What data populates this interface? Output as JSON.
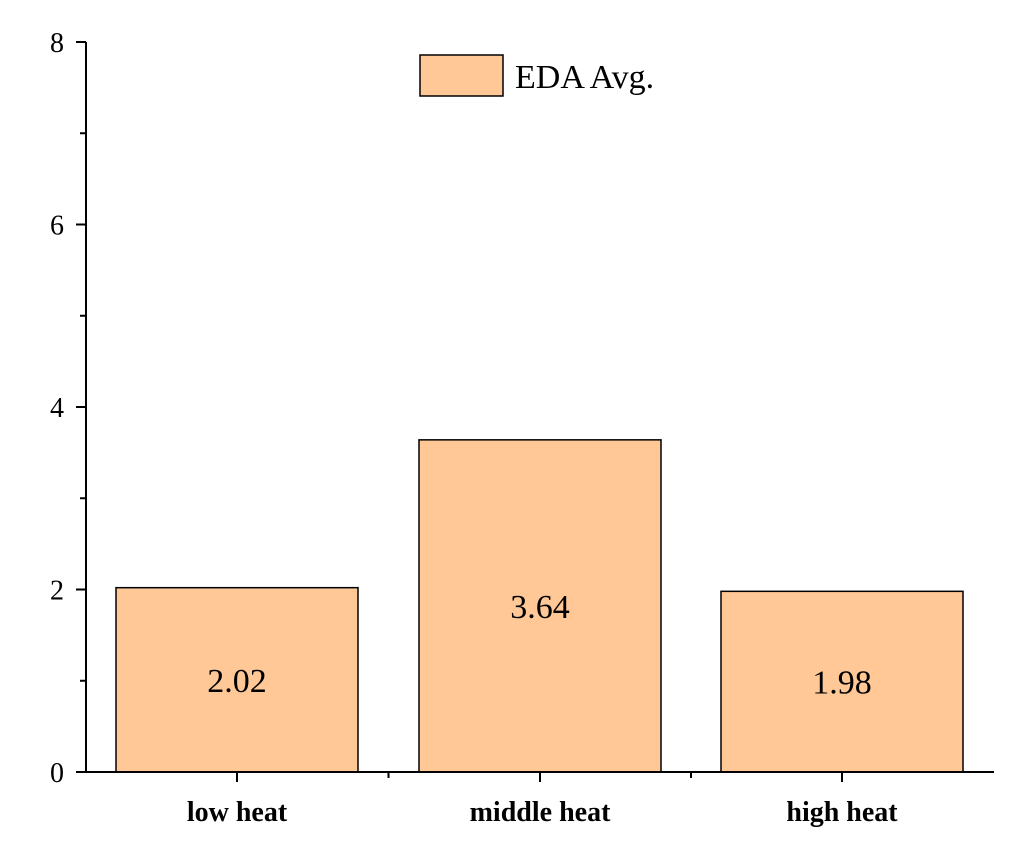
{
  "chart_data": {
    "type": "bar",
    "title": "",
    "xlabel": "",
    "ylabel": "",
    "categories": [
      "low heat",
      "middle heat",
      "high heat"
    ],
    "series": [
      {
        "name": "EDA Avg.",
        "values": [
          2.02,
          3.64,
          1.98
        ],
        "color": "#FFC896"
      }
    ],
    "data_labels": [
      "2.02",
      "3.64",
      "1.98"
    ],
    "ylim": [
      0,
      8
    ],
    "y_ticks": [
      0,
      2,
      4,
      6,
      8
    ],
    "y_tick_labels": [
      "0",
      "2",
      "4",
      "6",
      "8"
    ],
    "grid": false,
    "legend_position": "top-center"
  }
}
